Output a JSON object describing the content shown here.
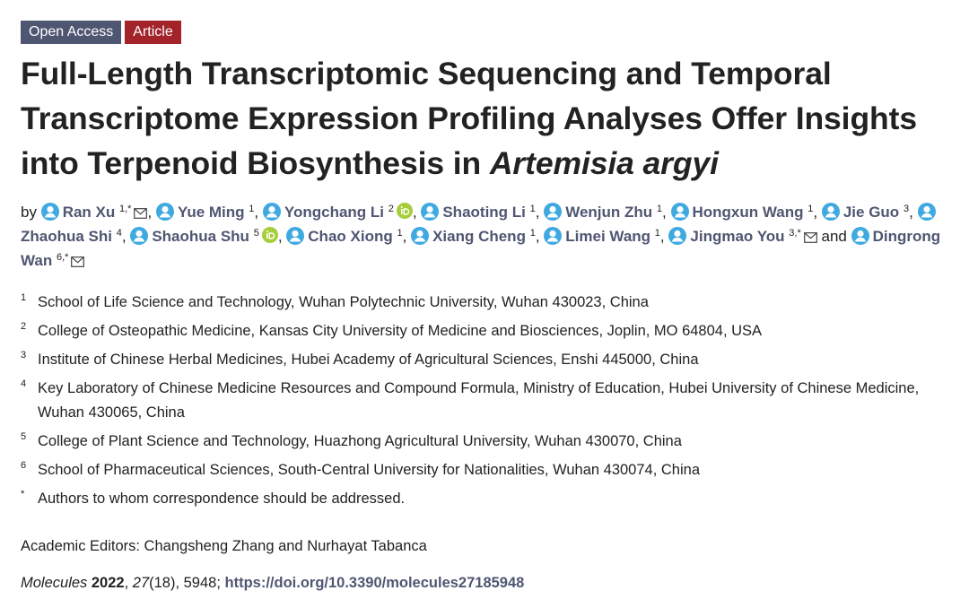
{
  "badges": [
    "Open Access",
    "Article"
  ],
  "title": {
    "main": "Full-Length Transcriptomic Sequencing and Temporal Transcriptome Expression Profiling Analyses Offer Insights into Terpenoid Biosynthesis in",
    "italic": "Artemisia argyi"
  },
  "authors": {
    "prefix": "by",
    "separator": ",",
    "last_separator": "and",
    "list": [
      {
        "name": "Ran Xu",
        "sup": "1,*",
        "orcid": false,
        "email": true
      },
      {
        "name": "Yue Ming",
        "sup": "1",
        "orcid": false,
        "email": false
      },
      {
        "name": "Yongchang Li",
        "sup": "2",
        "orcid": true,
        "email": false
      },
      {
        "name": "Shaoting Li",
        "sup": "1",
        "orcid": false,
        "email": false
      },
      {
        "name": "Wenjun Zhu",
        "sup": "1",
        "orcid": false,
        "email": false
      },
      {
        "name": "Hongxun Wang",
        "sup": "1",
        "orcid": false,
        "email": false
      },
      {
        "name": "Jie Guo",
        "sup": "3",
        "orcid": false,
        "email": false
      },
      {
        "name": "Zhaohua Shi",
        "sup": "4",
        "orcid": false,
        "email": false
      },
      {
        "name": "Shaohua Shu",
        "sup": "5",
        "orcid": true,
        "email": false
      },
      {
        "name": "Chao Xiong",
        "sup": "1",
        "orcid": false,
        "email": false
      },
      {
        "name": "Xiang Cheng",
        "sup": "1",
        "orcid": false,
        "email": false
      },
      {
        "name": "Limei Wang",
        "sup": "1",
        "orcid": false,
        "email": false
      },
      {
        "name": "Jingmao You",
        "sup": "3,*",
        "orcid": false,
        "email": true
      },
      {
        "name": "Dingrong Wan",
        "sup": "6,*",
        "orcid": false,
        "email": true
      }
    ]
  },
  "affiliations": [
    {
      "sup": "1",
      "text": "School of Life Science and Technology, Wuhan Polytechnic University, Wuhan 430023, China"
    },
    {
      "sup": "2",
      "text": "College of Osteopathic Medicine, Kansas City University of Medicine and Biosciences, Joplin, MO 64804, USA"
    },
    {
      "sup": "3",
      "text": "Institute of Chinese Herbal Medicines, Hubei Academy of Agricultural Sciences, Enshi 445000, China"
    },
    {
      "sup": "4",
      "text": "Key Laboratory of Chinese Medicine Resources and Compound Formula, Ministry of Education, Hubei University of Chinese Medicine, Wuhan 430065, China"
    },
    {
      "sup": "5",
      "text": "College of Plant Science and Technology, Huazhong Agricultural University, Wuhan 430070, China"
    },
    {
      "sup": "6",
      "text": "School of Pharmaceutical Sciences, South-Central University for Nationalities, Wuhan 430074, China"
    },
    {
      "sup": "*",
      "text": "Authors to whom correspondence should be addressed."
    }
  ],
  "editors": "Academic Editors: Changsheng Zhang and Nurhayat Tabanca",
  "citation": [
    {
      "text": "Molecules",
      "style": "italic"
    },
    {
      "text": " 2022",
      "style": "bold"
    },
    {
      "text": ", ",
      "style": "plain"
    },
    {
      "text": "27",
      "style": "italic"
    },
    {
      "text": "(18), 5948; ",
      "style": "plain"
    },
    {
      "text": "https://doi.org/10.3390/molecules27185948",
      "style": "link"
    }
  ]
}
